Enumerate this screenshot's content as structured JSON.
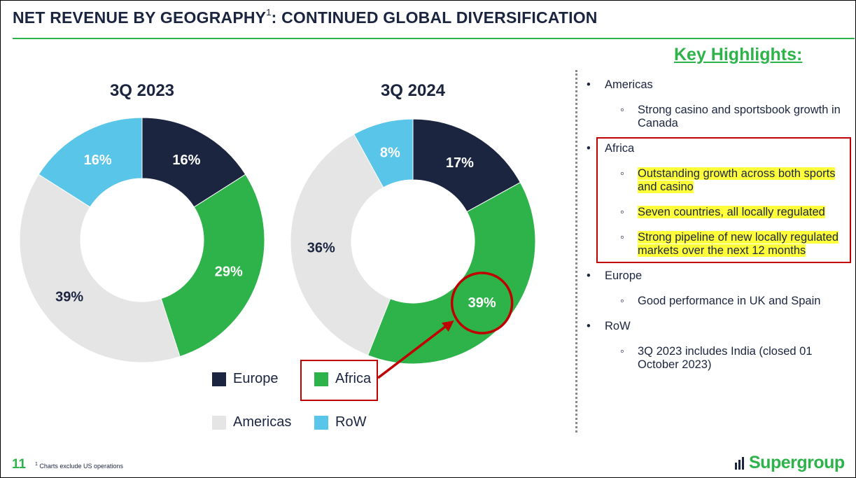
{
  "header": {
    "title": "NET REVENUE BY GEOGRAPHY",
    "title_sup": "1",
    "title_rest": ": CONTINUED GLOBAL DIVERSIFICATION"
  },
  "colors": {
    "Europe": "#1c2540",
    "Africa": "#2db34a",
    "Americas": "#e5e5e5",
    "RoW": "#59c5e8",
    "accent": "#2db34a",
    "callout": "#c00000"
  },
  "chart_data": [
    {
      "type": "pie",
      "variant": "donut",
      "title": "3Q 2023",
      "categories": [
        "Europe",
        "Africa",
        "Americas",
        "RoW"
      ],
      "values": [
        16,
        29,
        39,
        16
      ],
      "labels": [
        "16%",
        "29%",
        "39%",
        "16%"
      ]
    },
    {
      "type": "pie",
      "variant": "donut",
      "title": "3Q 2024",
      "categories": [
        "Europe",
        "Africa",
        "Americas",
        "RoW"
      ],
      "values": [
        17,
        39,
        36,
        8
      ],
      "labels": [
        "17%",
        "39%",
        "36%",
        "8%"
      ],
      "highlight": "Africa"
    }
  ],
  "legend": [
    {
      "name": "Europe",
      "label": "Europe"
    },
    {
      "name": "Africa",
      "label": "Africa"
    },
    {
      "name": "Americas",
      "label": "Americas"
    },
    {
      "name": "RoW",
      "label": "RoW"
    }
  ],
  "highlights": {
    "title": "Key Highlights:",
    "items": [
      {
        "label": "Americas",
        "subs": [
          {
            "text": "Strong casino and sportsbook growth in Canada",
            "hl": false
          }
        ]
      },
      {
        "label": "Africa",
        "subs": [
          {
            "text": "Outstanding growth across both sports and casino",
            "hl": true
          },
          {
            "text": "Seven countries, all locally regulated",
            "hl": true
          },
          {
            "text": "Strong pipeline of new locally regulated markets over the next 12 months",
            "hl": true
          }
        ]
      },
      {
        "label": "Europe",
        "subs": [
          {
            "text": "Good performance in UK and Spain",
            "hl": false
          }
        ]
      },
      {
        "label": "RoW",
        "subs": [
          {
            "text": "3Q 2023 includes India (closed 01 October 2023)",
            "hl": false
          }
        ]
      }
    ]
  },
  "footer": {
    "page": "11",
    "note_sup": "1",
    "note": "Charts exclude US operations",
    "logo": "Supergroup"
  }
}
